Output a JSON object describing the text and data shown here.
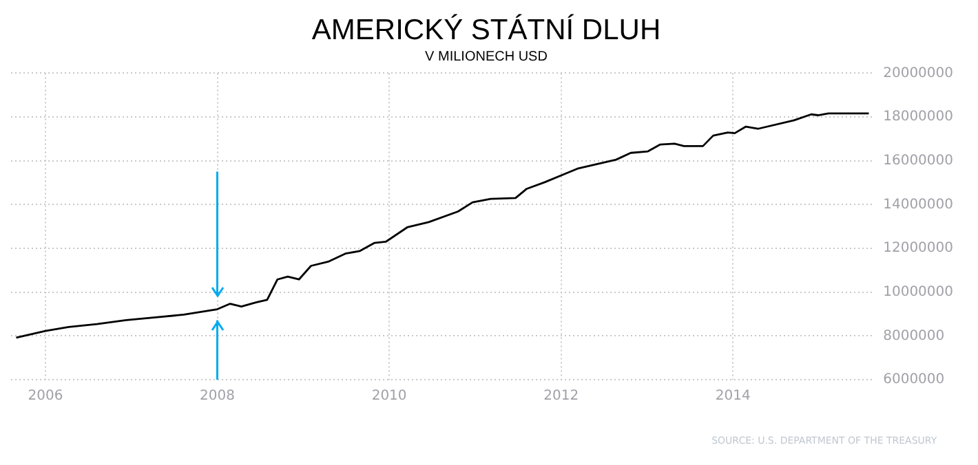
{
  "chart_data": {
    "type": "line",
    "title": "AMERICKÝ STÁTNÍ DLUH",
    "subtitle": "V MILIONECH USD",
    "x": [
      2005.66,
      2006.0,
      2006.27,
      2006.6,
      2006.94,
      2007.28,
      2007.61,
      2008.0,
      2008.15,
      2008.28,
      2008.45,
      2008.58,
      2008.7,
      2008.82,
      2008.95,
      2009.09,
      2009.29,
      2009.49,
      2009.66,
      2009.83,
      2009.96,
      2010.21,
      2010.46,
      2010.8,
      2010.97,
      2011.18,
      2011.47,
      2011.6,
      2011.81,
      2012.19,
      2012.64,
      2012.81,
      2013.01,
      2013.15,
      2013.32,
      2013.43,
      2013.65,
      2013.77,
      2013.94,
      2014.02,
      2014.15,
      2014.29,
      2014.71,
      2014.91,
      2014.99,
      2015.11,
      2015.58
    ],
    "series": [
      {
        "color": "#000000",
        "values": [
          7920000,
          8230000,
          8410000,
          8540000,
          8720000,
          8850000,
          8970000,
          9220000,
          9470000,
          9340000,
          9530000,
          9650000,
          10580000,
          10710000,
          10580000,
          11200000,
          11390000,
          11760000,
          11880000,
          12250000,
          12300000,
          12960000,
          13200000,
          13680000,
          14100000,
          14260000,
          14300000,
          14720000,
          15020000,
          15640000,
          16050000,
          16360000,
          16430000,
          16740000,
          16780000,
          16670000,
          16670000,
          17150000,
          17290000,
          17260000,
          17560000,
          17460000,
          17850000,
          18120000,
          18080000,
          18160000,
          18160000
        ]
      }
    ],
    "xlim": [
      2005.6,
      2015.65
    ],
    "xticks": [
      2006,
      2008,
      2010,
      2012,
      2014
    ],
    "ylim": [
      6000000,
      20000000
    ],
    "yticks": [
      6000000,
      8000000,
      10000000,
      12000000,
      14000000,
      16000000,
      18000000,
      20000000
    ],
    "grid": true,
    "legend": false,
    "marker": "none",
    "line_style": "solid",
    "ref_lines": [
      {
        "axis": "x",
        "value": 2008,
        "color": "#00aaee"
      }
    ],
    "annotations": [
      "SOURCE: U.S. DEPARTMENT OF THE TREASURY"
    ]
  }
}
